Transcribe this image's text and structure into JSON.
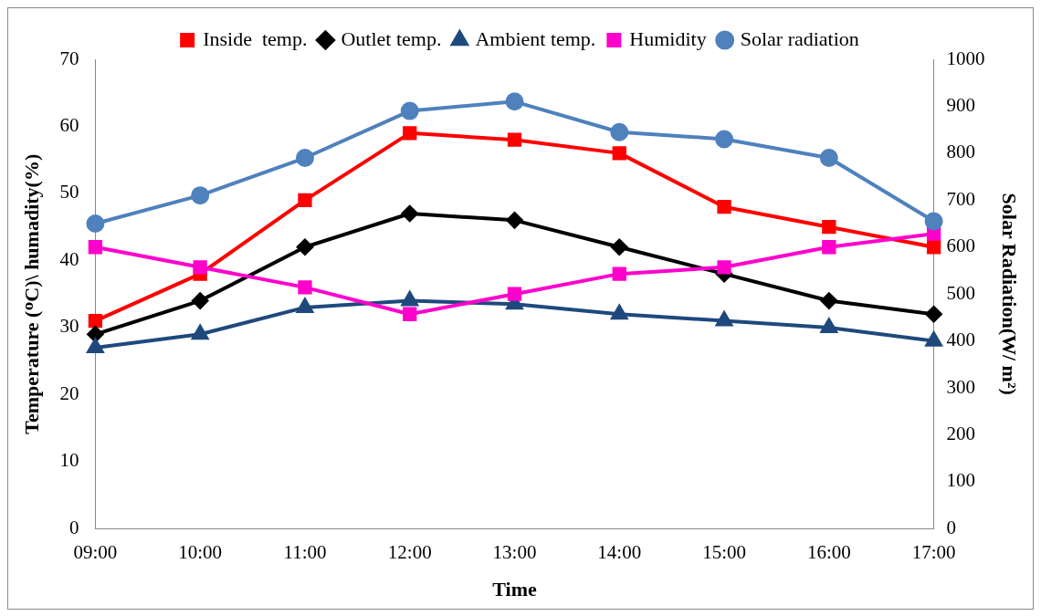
{
  "chart_data": {
    "type": "line",
    "xlabel": "Time",
    "ylabel": "Temperature (ᴼC)\\ humadity(%)",
    "y2label": "Solar Radiation(W/ m²)",
    "categories": [
      "09:00",
      "10:00",
      "11:00",
      "12:00",
      "13:00",
      "14:00",
      "15:00",
      "16:00",
      "17:00"
    ],
    "series": [
      {
        "name": "Inside  temp.",
        "color": "#ff0000",
        "marker": "square",
        "values": [
          31,
          38,
          49,
          59,
          58,
          56,
          48,
          45,
          42
        ]
      },
      {
        "name": "Outlet temp.",
        "color": "#000000",
        "marker": "diamond",
        "values": [
          29,
          34,
          42,
          47,
          46,
          42,
          38,
          34,
          32
        ]
      },
      {
        "name": "Ambient temp.",
        "color": "#1f497d",
        "marker": "triangle",
        "values": [
          27,
          29,
          33,
          34,
          33.5,
          32,
          31,
          30,
          28
        ]
      },
      {
        "name": "Humidity",
        "color": "#ff00cc",
        "marker": "square",
        "values": [
          42,
          39,
          36,
          32,
          35,
          38,
          39,
          42,
          44
        ]
      },
      {
        "name": "Solar radiation",
        "color": "#4f81bd",
        "marker": "circle",
        "axis": "y2",
        "values": [
          650,
          710,
          790,
          890,
          910,
          845,
          830,
          790,
          655
        ]
      }
    ],
    "ylim": [
      0,
      70
    ],
    "yticks": [
      0,
      10,
      20,
      30,
      40,
      50,
      60,
      70
    ],
    "y2lim": [
      0,
      1000
    ],
    "y2ticks": [
      0,
      100,
      200,
      300,
      400,
      500,
      600,
      700,
      800,
      900,
      1000
    ],
    "grid": false,
    "legend": "top"
  }
}
